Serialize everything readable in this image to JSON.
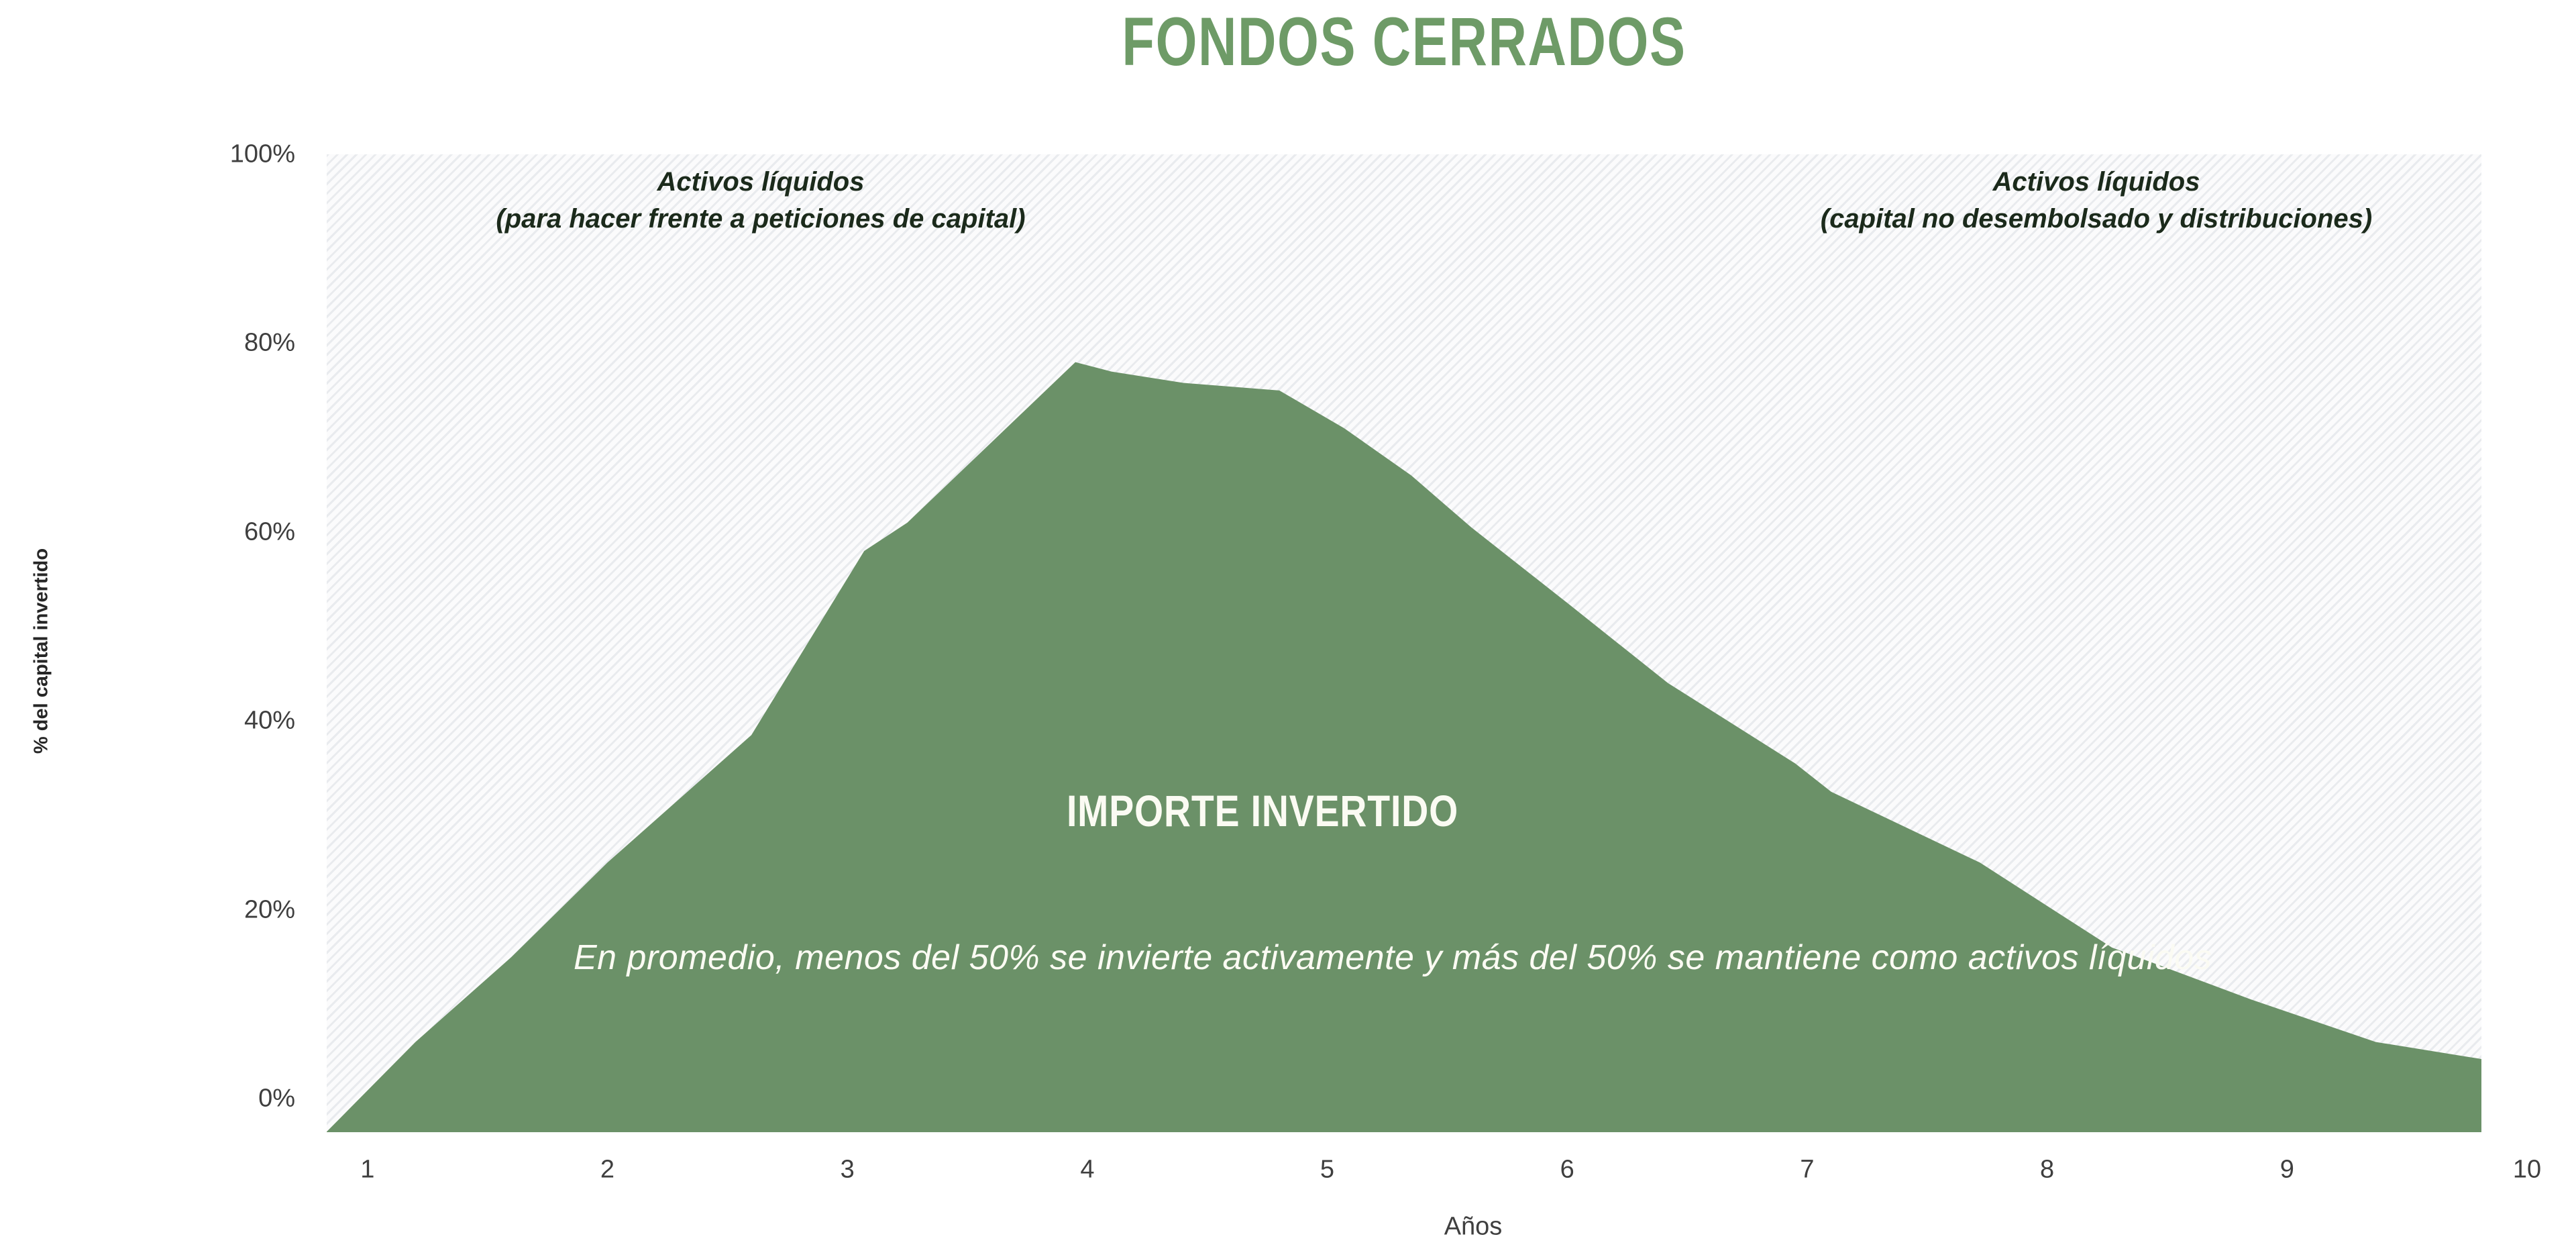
{
  "header": {
    "title": "FONDOS CERRADOS"
  },
  "chart_data": {
    "type": "area",
    "title": "FONDOS CERRADOS",
    "xlabel": "Años",
    "ylabel": "% del capital invertido",
    "x_domain": [
      0.83,
      9.81
    ],
    "ylim": [
      -3.55,
      100
    ],
    "grid": false,
    "legend": "none",
    "x_ticks": [
      {
        "label": "1",
        "value": 1
      },
      {
        "label": "2",
        "value": 2
      },
      {
        "label": "3",
        "value": 3
      },
      {
        "label": "4",
        "value": 4
      },
      {
        "label": "5",
        "value": 5
      },
      {
        "label": "6",
        "value": 6
      },
      {
        "label": "7",
        "value": 7
      },
      {
        "label": "8",
        "value": 8
      },
      {
        "label": "9",
        "value": 9
      },
      {
        "label": "10",
        "value": 10
      }
    ],
    "y_ticks": [
      {
        "label": "0%",
        "value": 0
      },
      {
        "label": "20%",
        "value": 20
      },
      {
        "label": "40%",
        "value": 40
      },
      {
        "label": "60%",
        "value": 60
      },
      {
        "label": "80%",
        "value": 80
      },
      {
        "label": "100%",
        "value": 100
      }
    ],
    "series": [
      {
        "name": "Importe invertido",
        "points": [
          [
            0.83,
            -3.5
          ],
          [
            1.2,
            6
          ],
          [
            1.6,
            15
          ],
          [
            2.0,
            25
          ],
          [
            2.6,
            38.5
          ],
          [
            3.07,
            58
          ],
          [
            3.25,
            61
          ],
          [
            3.6,
            69.5
          ],
          [
            3.95,
            78
          ],
          [
            4.1,
            77
          ],
          [
            4.4,
            75.8
          ],
          [
            4.8,
            75
          ],
          [
            5.07,
            71
          ],
          [
            5.35,
            66
          ],
          [
            5.6,
            60.5
          ],
          [
            6.0,
            52.5
          ],
          [
            6.42,
            44
          ],
          [
            6.95,
            35.5
          ],
          [
            7.1,
            32.5
          ],
          [
            7.72,
            25
          ],
          [
            8.27,
            16
          ],
          [
            8.85,
            10.5
          ],
          [
            9.37,
            6
          ],
          [
            9.81,
            4.2
          ]
        ]
      }
    ],
    "annotations": {
      "left": {
        "line1": "Activos líquidos",
        "line2": "(para hacer frente a peticiones de capital)"
      },
      "right": {
        "line1": "Activos líquidos",
        "line2": "(capital no desembolsado y distribuciones)"
      },
      "area_label": "IMPORTE INVERTIDO",
      "note": "En promedio, menos del 50% se invierte activamente y más del 50% se mantiene como activos líquidos"
    },
    "colors": {
      "area": "#6b9168",
      "title": "#6e9b67",
      "annotation_text": "#1b2a1b",
      "axis_text": "#3f3f3f",
      "light_text": "#fbfbf3",
      "hatch": "#e9ebee"
    }
  }
}
